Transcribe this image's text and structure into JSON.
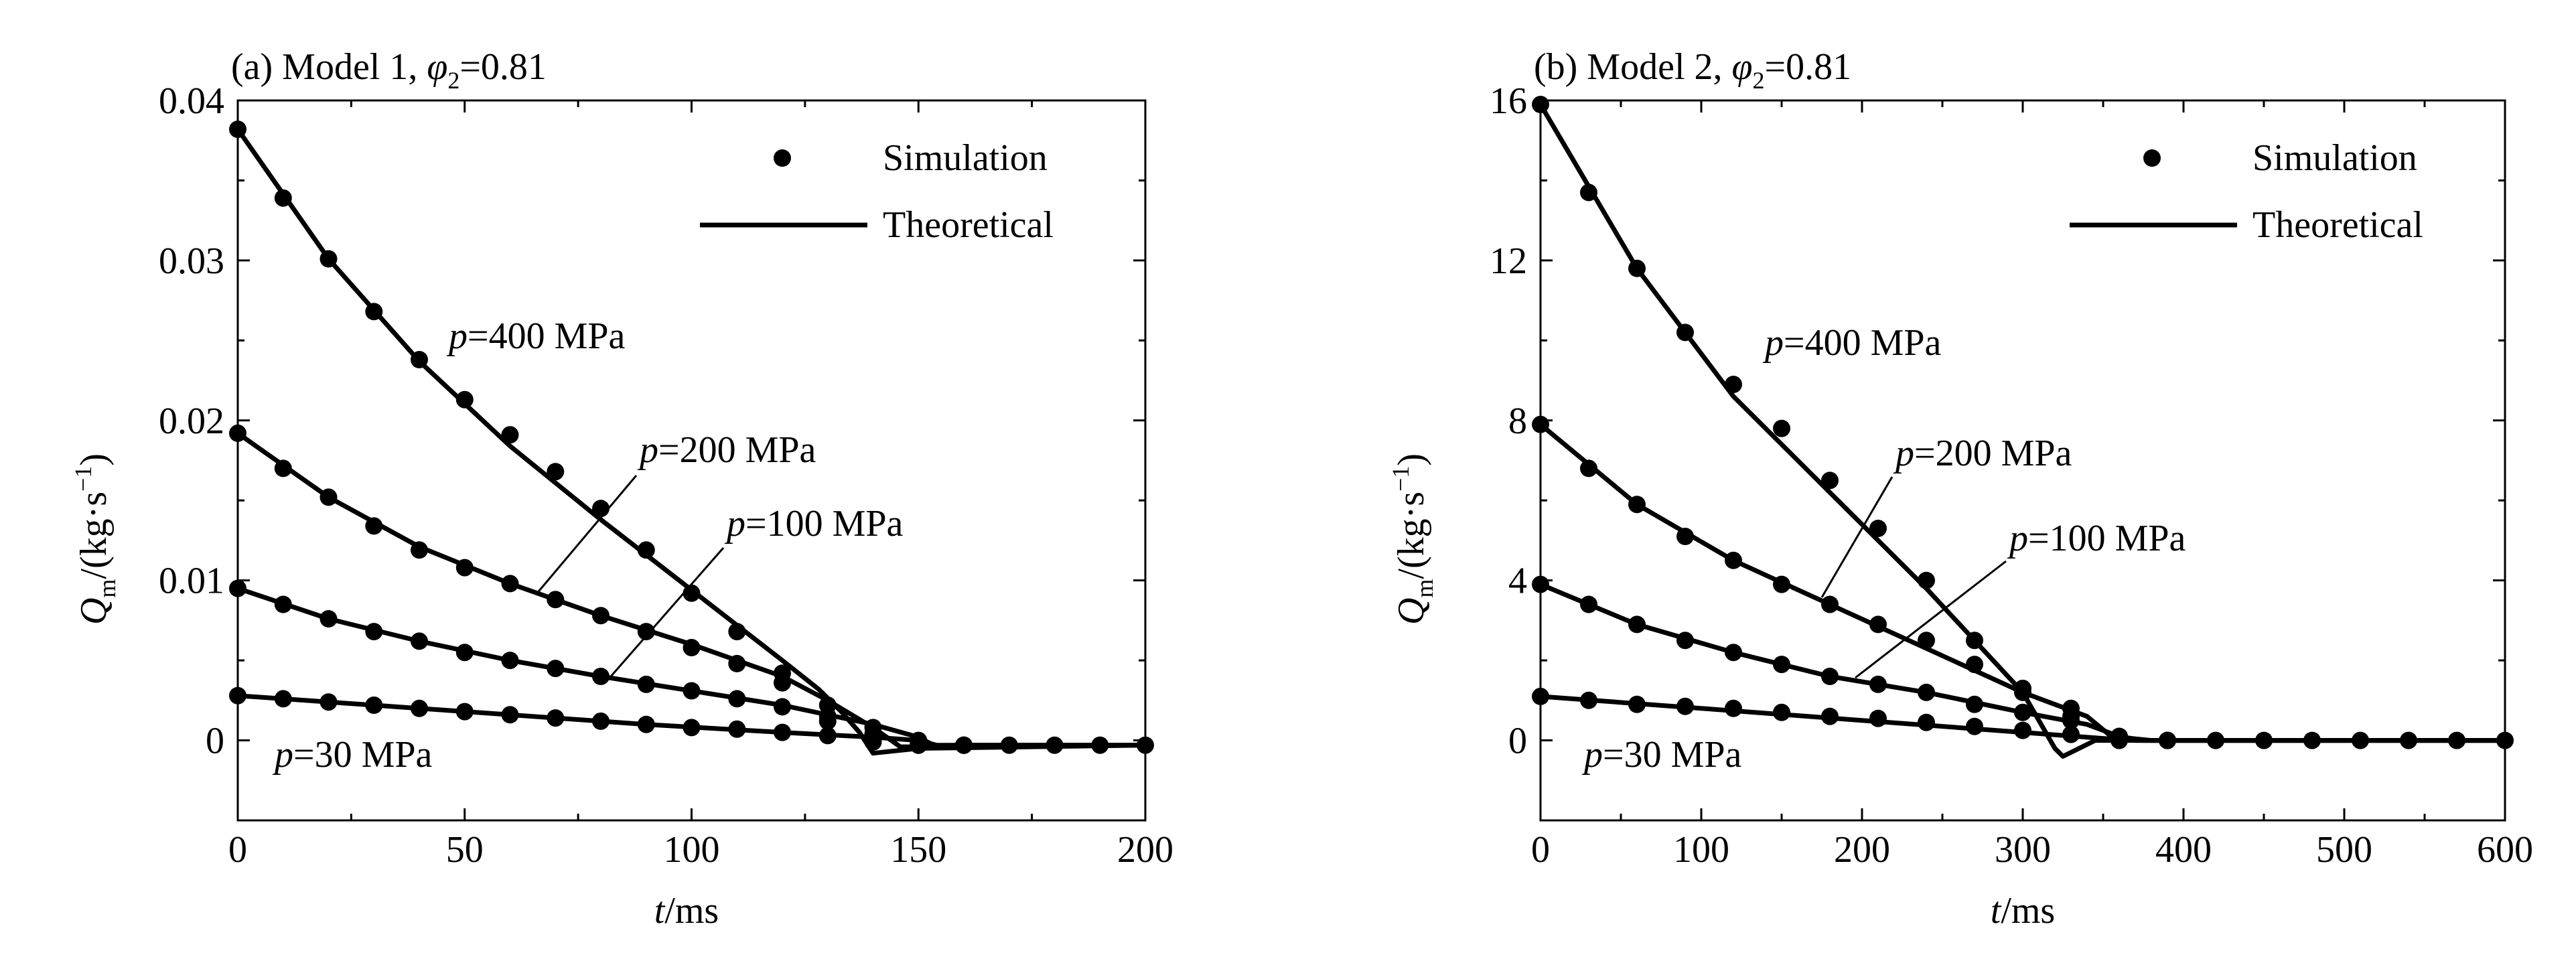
{
  "chart_data": [
    {
      "type": "line",
      "title": "(a) Model 1, φ₂=0.81",
      "title_parts": {
        "prefix": "(a) Model 1, ",
        "symbol": "φ",
        "subscript": "2",
        "suffix": "=0.81"
      },
      "xlabel": {
        "var": "t",
        "unit": "/ms"
      },
      "ylabel": {
        "var": "Q",
        "sub": "m",
        "unit_pre": "/(kg·s",
        "sup": "−1",
        "unit_post": ")"
      },
      "xlim": [
        0,
        200
      ],
      "ylim": [
        -0.005,
        0.04
      ],
      "xticks": [
        "0",
        "50",
        "100",
        "150",
        "200"
      ],
      "xtick_values": [
        0,
        50,
        100,
        150,
        200
      ],
      "yticks": [
        "0",
        "0.01",
        "0.02",
        "0.03",
        "0.04"
      ],
      "ytick_values": [
        0,
        0.01,
        0.02,
        0.03,
        0.04
      ],
      "legend": {
        "position": "top-right",
        "entries": [
          {
            "label": "Simulation",
            "marker": "dot"
          },
          {
            "label": "Theoretical",
            "marker": "line"
          }
        ]
      },
      "series": [
        {
          "name": "Theoretical",
          "label_var": "p",
          "label_rest": "=400 MPa",
          "x": [
            0,
            20,
            40,
            60,
            80,
            100,
            110,
            120,
            128,
            133,
            137,
            140,
            150,
            200
          ],
          "y": [
            0.0382,
            0.0301,
            0.0237,
            0.0184,
            0.0138,
            0.0094,
            0.0072,
            0.005,
            0.0032,
            0.0018,
            0.0005,
            -0.0008,
            -0.0005,
            -0.0003
          ],
          "sim_x": [
            0,
            10,
            20,
            30,
            40,
            50,
            60,
            70,
            80,
            90,
            100,
            110,
            120,
            130,
            140,
            150,
            160,
            170,
            180,
            190,
            200
          ],
          "sim_y": [
            0.0382,
            0.0339,
            0.0301,
            0.0268,
            0.0238,
            0.0213,
            0.0191,
            0.0168,
            0.0145,
            0.0119,
            0.0092,
            0.0068,
            0.0042,
            0.0012,
            -0.0001,
            -0.0003,
            -0.0003,
            -0.0003,
            -0.0003,
            -0.0003,
            -0.0003
          ]
        },
        {
          "name": "Theoretical",
          "label_var": "p",
          "label_rest": "=200 MPa",
          "x": [
            0,
            20,
            40,
            60,
            80,
            100,
            120,
            130,
            140,
            146,
            150,
            200
          ],
          "y": [
            0.0192,
            0.0152,
            0.0121,
            0.0098,
            0.0078,
            0.006,
            0.004,
            0.0025,
            0.0008,
            -0.0004,
            -0.0004,
            -0.0003
          ],
          "sim_x": [
            0,
            10,
            20,
            30,
            40,
            50,
            60,
            70,
            80,
            90,
            100,
            110,
            120,
            130,
            140,
            150,
            160
          ],
          "sim_y": [
            0.0192,
            0.017,
            0.0152,
            0.0134,
            0.0119,
            0.0108,
            0.0098,
            0.0088,
            0.0078,
            0.0068,
            0.0058,
            0.0048,
            0.0036,
            0.0022,
            0.0004,
            -0.0003,
            -0.0003
          ]
        },
        {
          "name": "Theoretical",
          "label_var": "p",
          "label_rest": "=100 MPa",
          "x": [
            0,
            20,
            40,
            60,
            80,
            100,
            120,
            140,
            150,
            154,
            158,
            200
          ],
          "y": [
            0.0095,
            0.0076,
            0.0062,
            0.005,
            0.004,
            0.0031,
            0.0022,
            0.001,
            0.0002,
            -0.0004,
            -0.0003,
            -0.0003
          ],
          "sim_x": [
            0,
            10,
            20,
            30,
            40,
            50,
            60,
            70,
            80,
            90,
            100,
            110,
            120,
            130,
            140,
            150,
            160
          ],
          "sim_y": [
            0.0095,
            0.0085,
            0.0076,
            0.0068,
            0.0062,
            0.0055,
            0.005,
            0.0045,
            0.004,
            0.0035,
            0.0031,
            0.0026,
            0.0021,
            0.0015,
            0.0008,
            -0.0002,
            -0.0003
          ]
        },
        {
          "name": "Theoretical",
          "label_var": "p",
          "label_rest": "=30 MPa",
          "x": [
            0,
            30,
            60,
            90,
            120,
            140,
            150,
            154,
            158,
            200
          ],
          "y": [
            0.0028,
            0.0022,
            0.0016,
            0.001,
            0.0005,
            0.0002,
            0.0,
            -0.0003,
            -0.0003,
            -0.0003
          ],
          "sim_x": [
            0,
            10,
            20,
            30,
            40,
            50,
            60,
            70,
            80,
            90,
            100,
            110,
            120,
            130,
            140,
            150,
            160
          ],
          "sim_y": [
            0.0028,
            0.0026,
            0.0024,
            0.0022,
            0.002,
            0.0018,
            0.0016,
            0.0014,
            0.0012,
            0.001,
            0.0008,
            0.0007,
            0.0005,
            0.0003,
            0.0002,
            0.0,
            -0.0003
          ]
        }
      ]
    },
    {
      "type": "line",
      "title": "(b) Model 2, φ₂=0.81",
      "title_parts": {
        "prefix": "(b) Model 2, ",
        "symbol": "φ",
        "subscript": "2",
        "suffix": "=0.81"
      },
      "xlabel": {
        "var": "t",
        "unit": "/ms"
      },
      "ylabel": {
        "var": "Q",
        "sub": "m",
        "unit_pre": "/(kg·s",
        "sup": "−1",
        "unit_post": ")"
      },
      "xlim": [
        0,
        600
      ],
      "ylim": [
        -2,
        16
      ],
      "xticks": [
        "0",
        "100",
        "200",
        "300",
        "400",
        "500",
        "600"
      ],
      "xtick_values": [
        0,
        100,
        200,
        300,
        400,
        500,
        600
      ],
      "yticks": [
        "0",
        "4",
        "8",
        "12",
        "16"
      ],
      "ytick_values": [
        0,
        4,
        8,
        12,
        16
      ],
      "legend": {
        "position": "top-right",
        "entries": [
          {
            "label": "Simulation",
            "marker": "dot"
          },
          {
            "label": "Theoretical",
            "marker": "line"
          }
        ]
      },
      "series": [
        {
          "name": "Theoretical",
          "label_var": "p",
          "label_rest": "=400 MPa",
          "x": [
            0,
            60,
            120,
            180,
            240,
            270,
            300,
            320,
            325,
            330,
            345,
            380,
            600
          ],
          "y": [
            15.9,
            11.8,
            8.6,
            6.2,
            3.8,
            2.5,
            1.2,
            -0.2,
            -0.4,
            -0.3,
            0.0,
            0.0,
            0.0
          ],
          "sim_x": [
            0,
            30,
            60,
            90,
            120,
            150,
            180,
            210,
            240,
            270,
            300,
            330,
            360,
            390,
            420,
            450,
            480,
            510,
            540,
            570,
            600
          ],
          "sim_y": [
            15.9,
            13.7,
            11.8,
            10.2,
            8.9,
            7.8,
            6.5,
            5.3,
            4.0,
            2.5,
            1.3,
            0.6,
            0.0,
            0.0,
            0.0,
            0.0,
            0.0,
            0.0,
            0.0,
            0.0,
            0.0
          ]
        },
        {
          "name": "Theoretical",
          "label_var": "p",
          "label_rest": "=200 MPa",
          "x": [
            0,
            60,
            120,
            180,
            240,
            300,
            320,
            340,
            355,
            380,
            600
          ],
          "y": [
            7.9,
            5.9,
            4.5,
            3.4,
            2.3,
            1.2,
            0.9,
            0.6,
            0.1,
            0.0,
            0.0
          ],
          "sim_x": [
            0,
            30,
            60,
            90,
            120,
            150,
            180,
            210,
            240,
            270,
            300,
            330,
            360,
            390
          ],
          "sim_y": [
            7.9,
            6.8,
            5.9,
            5.1,
            4.5,
            3.9,
            3.4,
            2.9,
            2.5,
            1.9,
            1.2,
            0.8,
            0.1,
            0.0
          ]
        },
        {
          "name": "Theoretical",
          "label_var": "p",
          "label_rest": "=100 MPa",
          "x": [
            0,
            60,
            120,
            180,
            240,
            300,
            340,
            360,
            375,
            600
          ],
          "y": [
            3.9,
            2.9,
            2.2,
            1.6,
            1.2,
            0.7,
            0.4,
            0.1,
            0.0,
            0.0
          ],
          "sim_x": [
            0,
            30,
            60,
            90,
            120,
            150,
            180,
            210,
            240,
            270,
            300,
            330,
            360,
            390
          ],
          "sim_y": [
            3.9,
            3.4,
            2.9,
            2.5,
            2.2,
            1.9,
            1.6,
            1.4,
            1.2,
            0.9,
            0.7,
            0.5,
            0.1,
            0.0
          ]
        },
        {
          "name": "Theoretical",
          "label_var": "p",
          "label_rest": "=30 MPa",
          "x": [
            0,
            100,
            200,
            300,
            350,
            370,
            600
          ],
          "y": [
            1.1,
            0.8,
            0.5,
            0.2,
            0.05,
            0.0,
            0.0
          ],
          "sim_x": [
            0,
            30,
            60,
            90,
            120,
            150,
            180,
            210,
            240,
            270,
            300,
            330,
            360
          ],
          "sim_y": [
            1.1,
            1.0,
            0.9,
            0.85,
            0.8,
            0.7,
            0.6,
            0.55,
            0.45,
            0.35,
            0.25,
            0.15,
            0.05
          ]
        }
      ]
    }
  ]
}
